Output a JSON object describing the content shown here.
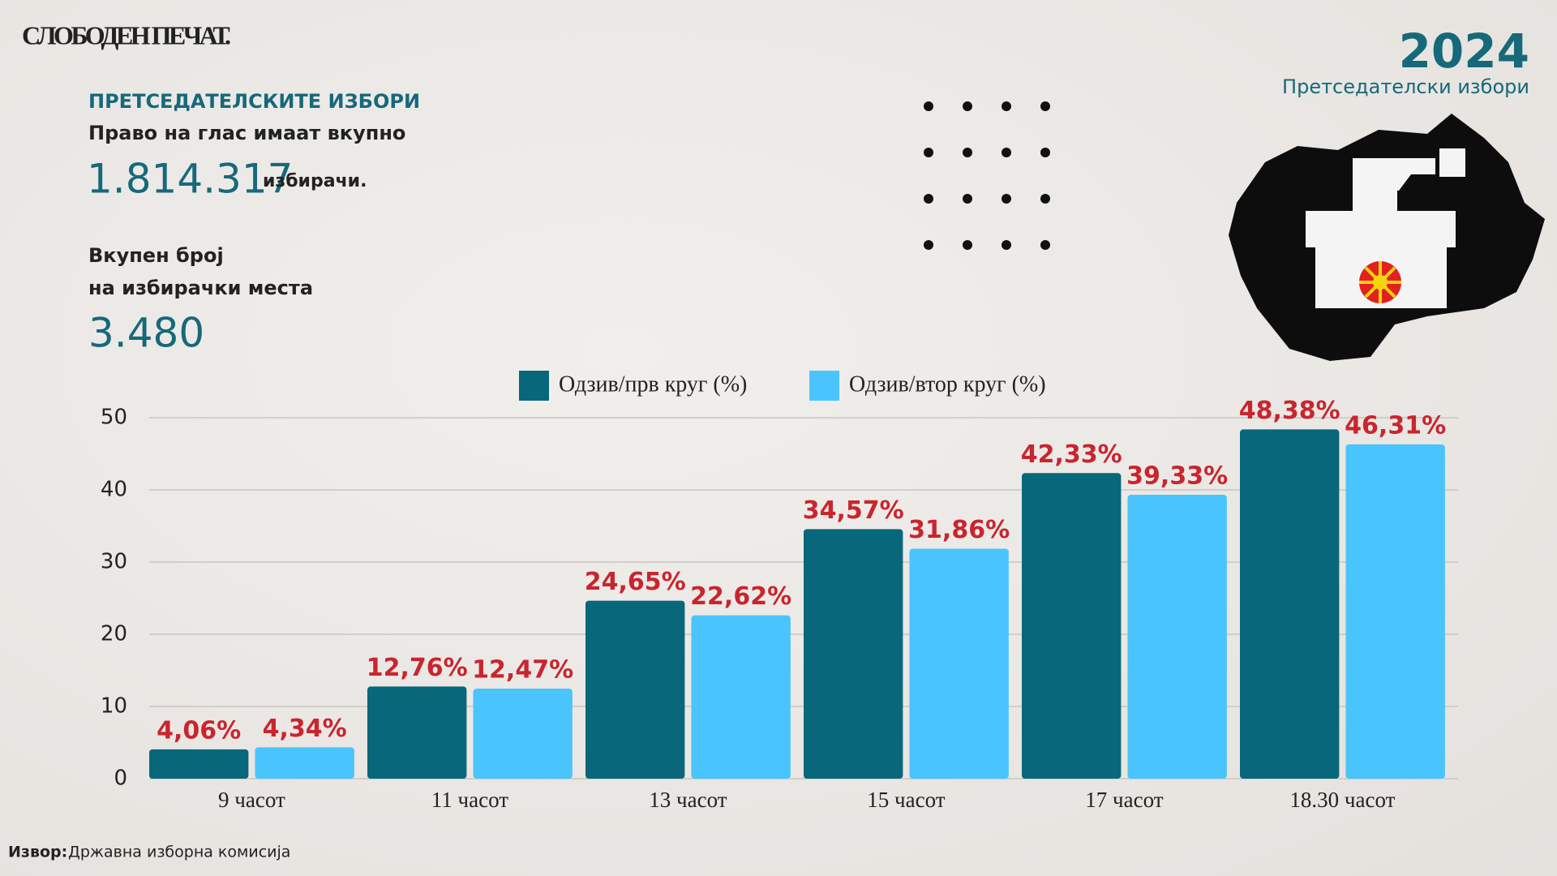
{
  "header": {
    "brand": "СЛОБОДЕН ПЕЧАТ.",
    "year": "2024",
    "subtitle": "Претседателски избори"
  },
  "info": {
    "heading": "ПРЕТСЕДАТЕЛСКИТЕ ИЗБОРИ",
    "voters_label": "Право на глас имаат вкупно",
    "voters": "1.814.317",
    "voters_unit": "избирачи.",
    "stations_label_1": "Вкупен број",
    "stations_label_2": "на избирачки места",
    "stations": "3.480"
  },
  "chart_data": {
    "type": "bar",
    "categories": [
      "9 часот",
      "11 часот",
      "13 часот",
      "15 часот",
      "17 часот",
      "18.30 часот"
    ],
    "series": [
      {
        "name": "Одзив/прв круг (%)",
        "color": "#08677a",
        "values": [
          4.06,
          12.76,
          24.65,
          34.57,
          42.33,
          48.38
        ],
        "value_labels": [
          "4,06%",
          "12,76%",
          "24,65%",
          "34,57%",
          "42,33%",
          "48,38%"
        ]
      },
      {
        "name": "Одзив/втор круг (%)",
        "color": "#4ac4fc",
        "values": [
          4.34,
          12.47,
          22.62,
          31.86,
          39.33,
          46.31
        ],
        "value_labels": [
          "4,34%",
          "12,47%",
          "22,62%",
          "31,86%",
          "39,33%",
          "46,31%"
        ]
      }
    ],
    "ylim": [
      0,
      50
    ],
    "yticks": [
      0,
      10,
      20,
      30,
      40,
      50
    ],
    "grid": true,
    "legend": "top",
    "label_color": "#c9252e"
  },
  "source": {
    "label": "Извор:",
    "text": "Државна изборна комисија"
  }
}
